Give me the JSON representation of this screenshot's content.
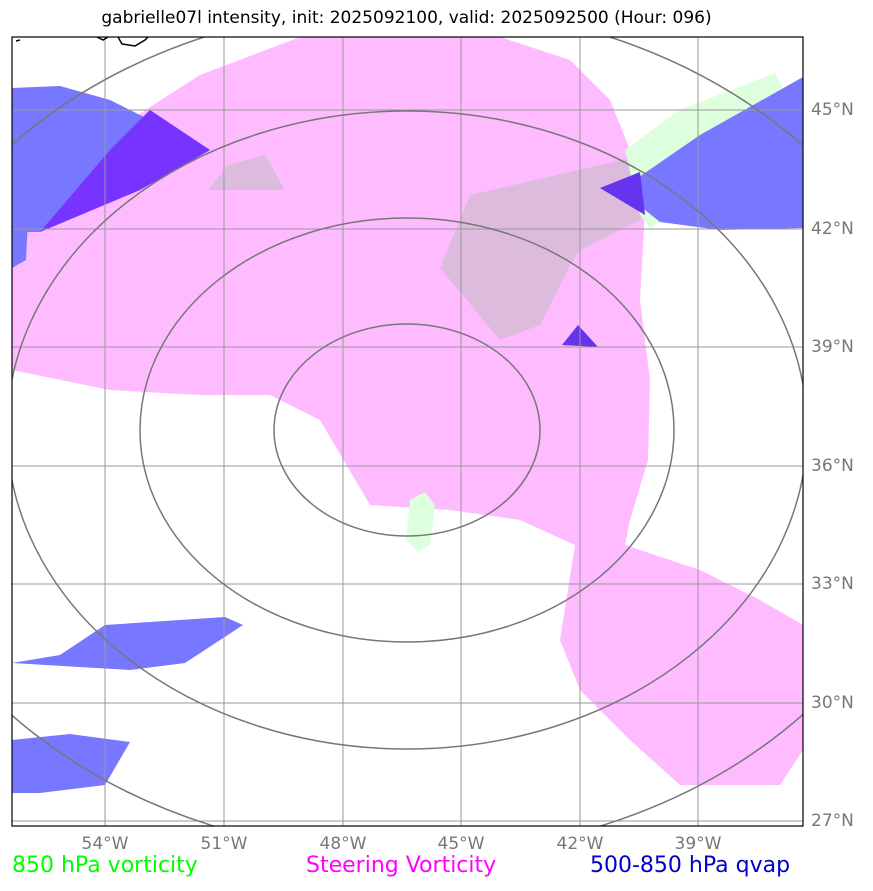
{
  "title": "gabrielle07l intensity, init: 2025092100, valid: 2025092500 (Hour: 096)",
  "lon_ticks": [
    "54°W",
    "51°W",
    "48°W",
    "45°W",
    "42°W",
    "39°W"
  ],
  "lat_ticks": [
    "45°N",
    "42°N",
    "39°N",
    "36°N",
    "33°N",
    "30°N",
    "27°N"
  ],
  "legend": [
    {
      "label": "850 hPa vorticity",
      "color": "#00ff00"
    },
    {
      "label": "Steering Vorticity",
      "color": "#ff00ff"
    },
    {
      "label": "500-850 hPa qvap",
      "color": "#0000cc"
    }
  ],
  "colors": {
    "steering": "#ffbbff",
    "vort850": "#ddffdd",
    "qvap": "#7777ff",
    "qvap_dark": "#7733ff",
    "overlap": "#ddbbdd",
    "grid": "#999999",
    "rings": "#777777"
  }
}
